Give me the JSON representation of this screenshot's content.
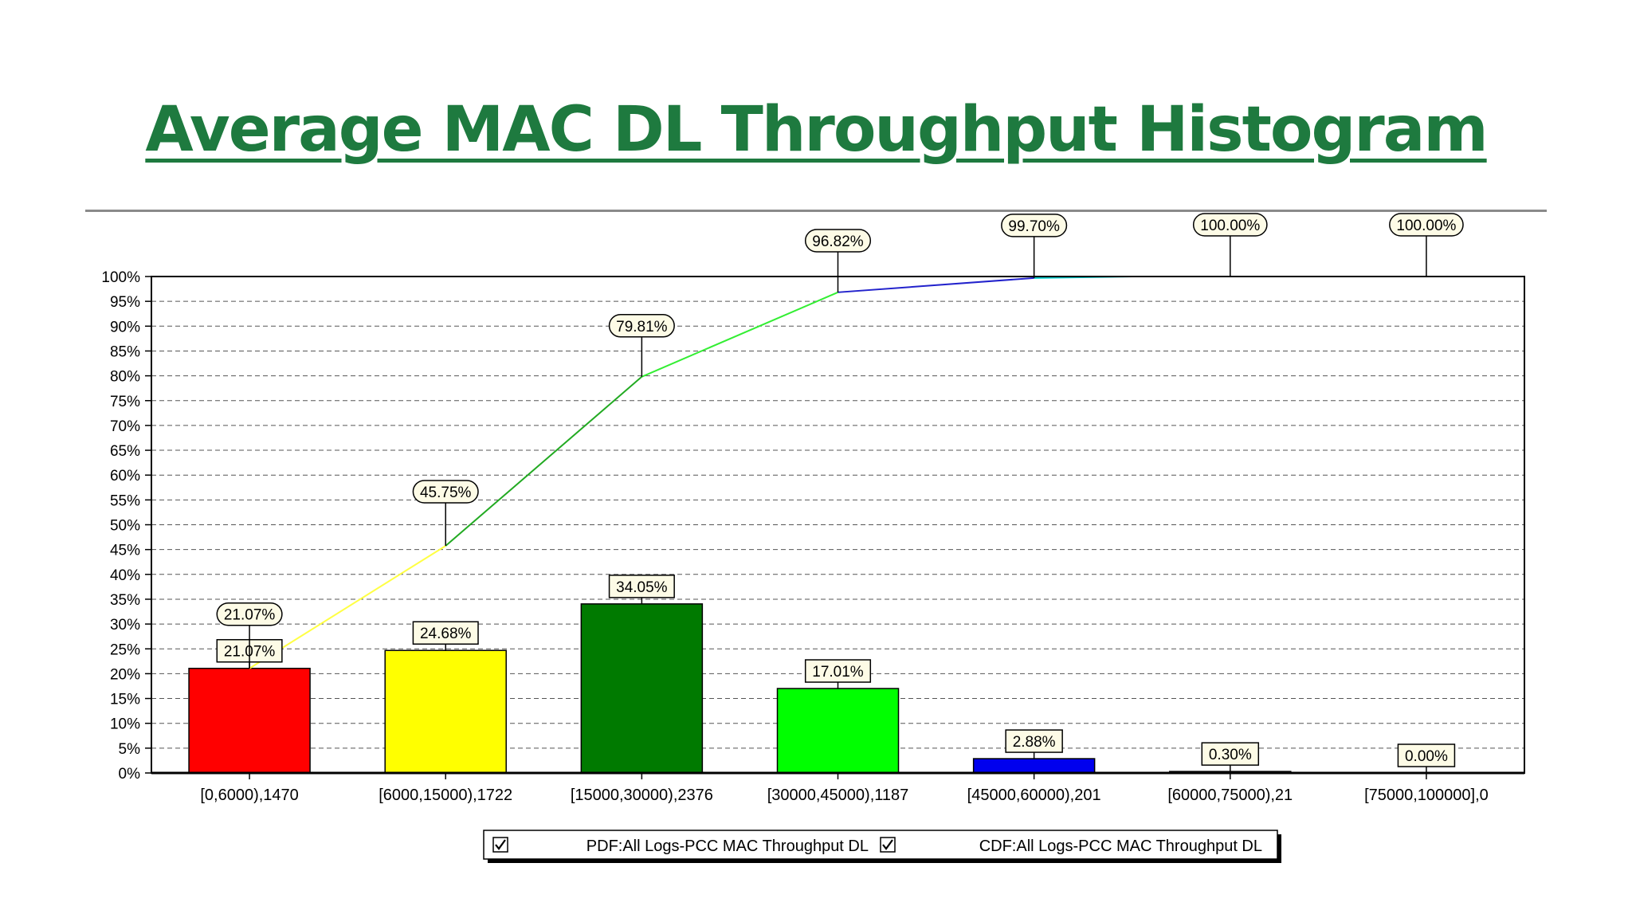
{
  "slide": {
    "title": "Average MAC DL Throughput Histogram"
  },
  "colors": {
    "title": "#1e7a3f",
    "grid": "#555555",
    "label_fill": "#fdfbe6"
  },
  "chart_data": {
    "type": "bar",
    "title": "",
    "xlabel": "",
    "ylabel": "",
    "ylim": [
      0,
      100
    ],
    "y_ticks": [
      "0%",
      "5%",
      "10%",
      "15%",
      "20%",
      "25%",
      "30%",
      "35%",
      "40%",
      "45%",
      "50%",
      "55%",
      "60%",
      "65%",
      "70%",
      "75%",
      "80%",
      "85%",
      "90%",
      "95%",
      "100%"
    ],
    "grid": "dashed horizontal",
    "legend_position": "bottom",
    "categories": [
      "[0,6000),1470",
      "[6000,15000),1722",
      "[15000,30000),2376",
      "[30000,45000),1187",
      "[45000,60000),201",
      "[60000,75000),21",
      "[75000,100000],0"
    ],
    "series": [
      {
        "name": "PDF:All Logs-PCC MAC Throughput DL",
        "kind": "bar",
        "values": [
          21.07,
          24.68,
          34.05,
          17.01,
          2.88,
          0.3,
          0.0
        ],
        "labels": [
          "21.07%",
          "24.68%",
          "34.05%",
          "17.01%",
          "2.88%",
          "0.30%",
          "0.00%"
        ],
        "colors": [
          "#ff0000",
          "#ffff00",
          "#007a00",
          "#00ff00",
          "#0000ee",
          "#ffffff",
          "#ffffff"
        ]
      },
      {
        "name": "CDF:All Logs-PCC MAC Throughput DL",
        "kind": "line",
        "values": [
          21.07,
          45.75,
          79.81,
          96.82,
          99.7,
          100.0,
          100.0
        ],
        "labels": [
          "21.07%",
          "45.75%",
          "79.81%",
          "96.82%",
          "99.70%",
          "100.00%",
          "100.00%"
        ],
        "segment_colors": [
          "#ffff44",
          "#22aa22",
          "#33ee33",
          "#2222cc",
          "#00cccc",
          "#00cccc"
        ]
      }
    ]
  }
}
